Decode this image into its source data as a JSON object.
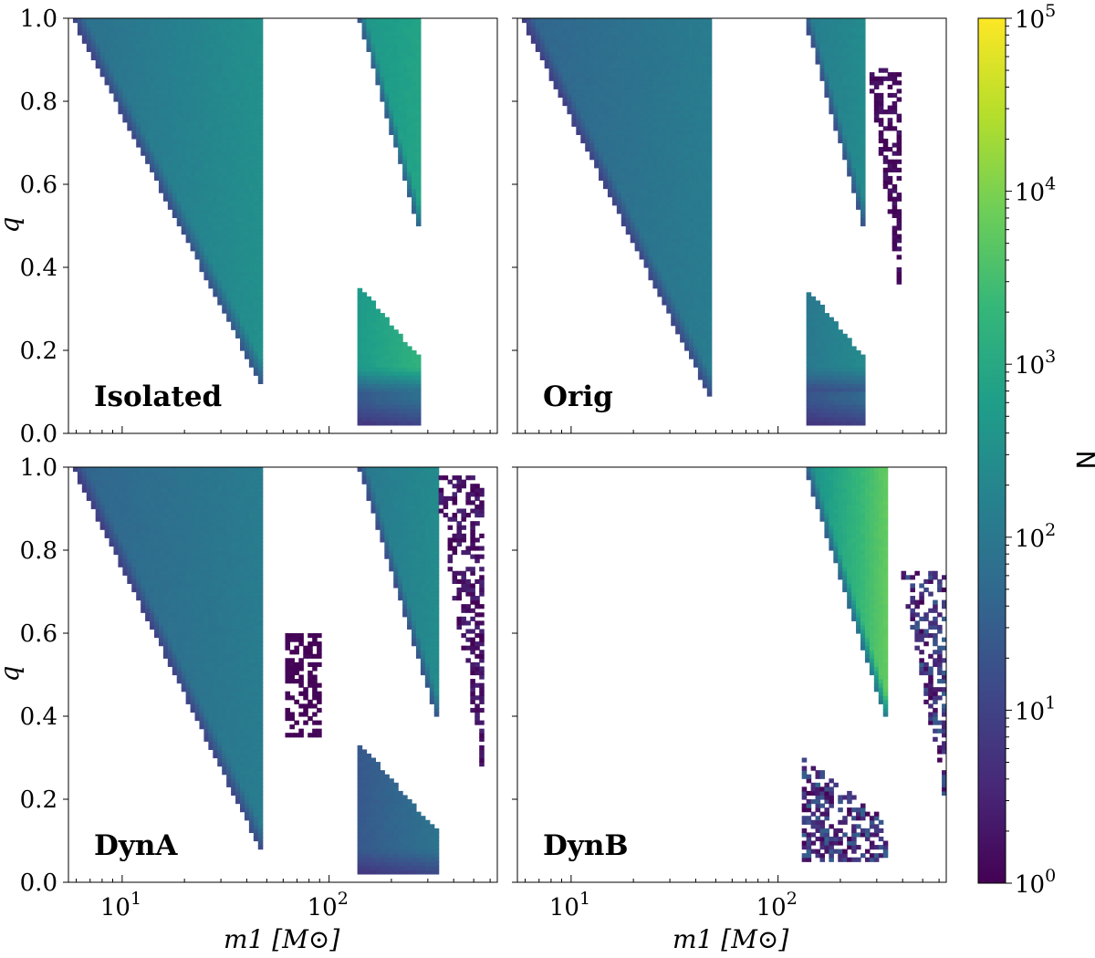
{
  "chart_data": {
    "type": "heatmap",
    "layout": "2x2 grid, shared axes",
    "xscale": "log",
    "xlim": [
      5.5,
      650
    ],
    "ylim": [
      0.0,
      1.0
    ],
    "xlabel": "m1 [M⊙]",
    "ylabel": "q",
    "x_ticks": [
      {
        "value": 10,
        "base": "10",
        "exp": "1"
      },
      {
        "value": 100,
        "base": "10",
        "exp": "2"
      }
    ],
    "y_ticks": [
      "0.0",
      "0.2",
      "0.4",
      "0.6",
      "0.8",
      "1.0"
    ],
    "colorbar": {
      "label": "N",
      "scale": "log",
      "range": [
        1,
        100000
      ],
      "ticks": [
        {
          "value": 1,
          "base": "10",
          "exp": "0"
        },
        {
          "value": 10,
          "base": "10",
          "exp": "1"
        },
        {
          "value": 100,
          "base": "10",
          "exp": "2"
        },
        {
          "value": 1000,
          "base": "10",
          "exp": "3"
        },
        {
          "value": 10000,
          "base": "10",
          "exp": "4"
        },
        {
          "value": 100000,
          "base": "10",
          "exp": "5"
        }
      ],
      "colormap": [
        "#440154",
        "#482878",
        "#3e4989",
        "#31688e",
        "#26828e",
        "#1f9e89",
        "#35b779",
        "#6ece58",
        "#b5de2b",
        "#fde725"
      ]
    },
    "panels": [
      {
        "label": "Isolated",
        "regions": [
          {
            "x": [
              5.8,
              47
            ],
            "qmin_at_xmin": 1.0,
            "qmin_at_xmax": 0.12,
            "qmax": 1.0,
            "log10N": [
              1.8,
              2.5
            ],
            "scatter": false
          },
          {
            "x": [
              140,
              270
            ],
            "qmin_at_xmin": 1.0,
            "qmin_at_xmax": 0.5,
            "qmax": 1.0,
            "log10N": [
              2.6,
              2.9
            ],
            "scatter": false
          },
          {
            "x": [
              140,
              270
            ],
            "qmin": 0.1,
            "qmax_at_xmin": 0.35,
            "qmax_at_xmax": 0.18,
            "log10N": [
              2.7,
              3.2
            ],
            "scatter": false
          },
          {
            "x": [
              140,
              270
            ],
            "qmin": 0.02,
            "qmax": 0.1,
            "log10N": [
              1.4,
              1.8
            ],
            "scatter": false
          }
        ]
      },
      {
        "label": "Orig",
        "regions": [
          {
            "x": [
              5.8,
              47
            ],
            "qmin_at_xmin": 1.0,
            "qmin_at_xmax": 0.09,
            "qmax": 1.0,
            "log10N": [
              1.6,
              2.1
            ],
            "scatter": false
          },
          {
            "x": [
              135,
              260
            ],
            "qmin_at_xmin": 1.0,
            "qmin_at_xmax": 0.5,
            "qmax": 1.0,
            "log10N": [
              2.1,
              2.4
            ],
            "scatter": false
          },
          {
            "x": [
              135,
              260
            ],
            "qmin": 0.1,
            "qmax_at_xmin": 0.35,
            "qmax_at_xmax": 0.18,
            "log10N": [
              2.0,
              2.4
            ],
            "scatter": false
          },
          {
            "x": [
              135,
              260
            ],
            "qmin": 0.02,
            "qmax": 0.1,
            "log10N": [
              1.3,
              1.7
            ],
            "scatter": false
          },
          {
            "x": [
              270,
              400
            ],
            "qmin_at_xmin": 0.9,
            "qmin_at_xmax": 0.3,
            "qmax": 0.88,
            "log10N": [
              0.0,
              0.3
            ],
            "scatter": true
          }
        ]
      },
      {
        "label": "DynA",
        "regions": [
          {
            "x": [
              5.8,
              47
            ],
            "qmin_at_xmin": 1.0,
            "qmin_at_xmax": 0.08,
            "qmax": 1.0,
            "log10N": [
              1.6,
              2.1
            ],
            "scatter": false
          },
          {
            "x": [
              140,
              330
            ],
            "qmin_at_xmin": 1.0,
            "qmin_at_xmax": 0.4,
            "qmax": 1.0,
            "log10N": [
              2.0,
              2.4
            ],
            "scatter": false
          },
          {
            "x": [
              140,
              330
            ],
            "qmin": 0.02,
            "qmax_at_xmin": 0.33,
            "qmax_at_xmax": 0.12,
            "log10N": [
              1.4,
              1.9
            ],
            "scatter": false
          },
          {
            "x": [
              330,
              560
            ],
            "qmin_at_xmin": 0.95,
            "qmin_at_xmax": 0.25,
            "qmax": 0.98,
            "log10N": [
              0.0,
              0.5
            ],
            "scatter": true
          },
          {
            "x": [
              60,
              90
            ],
            "qmin": 0.35,
            "qmax": 0.6,
            "log10N": [
              0.0,
              0.1
            ],
            "scatter": true
          }
        ]
      },
      {
        "label": "DynB",
        "regions": [
          {
            "x": [
              135,
              340
            ],
            "qmin_at_xmin": 1.0,
            "qmin_at_xmax": 0.38,
            "qmax": 1.0,
            "log10N": [
              2.4,
              3.8
            ],
            "scatter": false
          },
          {
            "x": [
              340,
              640
            ],
            "qmin_at_xmin": 0.92,
            "qmin_at_xmax": 0.2,
            "qmax": 0.75,
            "log10N": [
              0.0,
              1.6
            ],
            "scatter": true
          },
          {
            "x": [
              130,
              340
            ],
            "qmin": 0.05,
            "qmax_at_xmin": 0.3,
            "qmax_at_xmax": 0.14,
            "log10N": [
              0.0,
              1.6
            ],
            "scatter": true
          }
        ]
      }
    ]
  }
}
